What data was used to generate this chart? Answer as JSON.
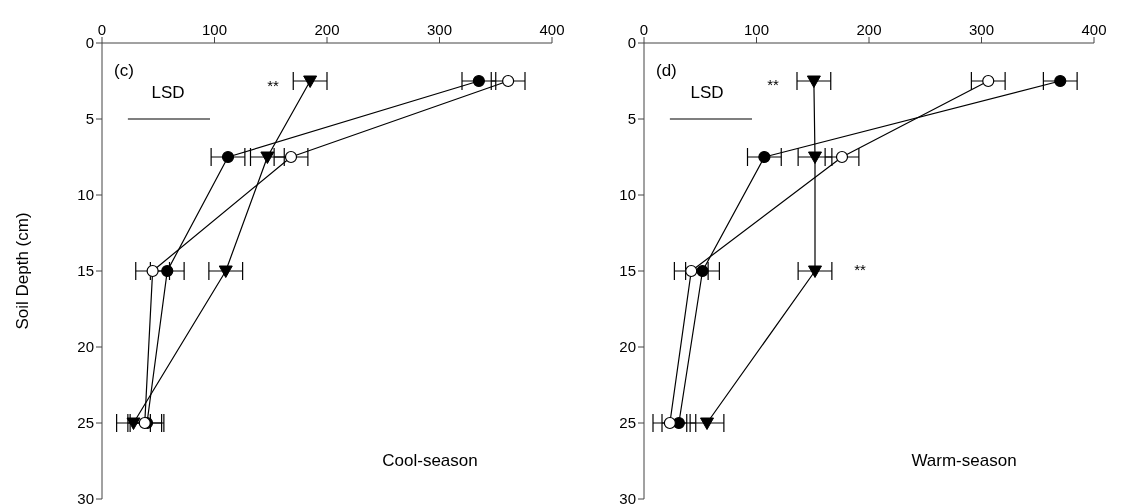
{
  "chart_data": [
    {
      "type": "line",
      "title": "(c)",
      "ylabel": "Soil Depth (cm)",
      "xlim": [
        0,
        400
      ],
      "xticks": [
        0,
        100,
        200,
        300,
        400
      ],
      "ylim": [
        30,
        0
      ],
      "yticks": [
        0,
        5,
        10,
        15,
        20,
        25,
        30
      ],
      "line_style": "solid",
      "series": [
        {
          "color": "#000000",
          "marker": "circle",
          "x": [
            335,
            112,
            58,
            40
          ],
          "values": [
            2.5,
            7.5,
            15,
            25
          ],
          "xerrors": [
            15,
            15,
            15,
            15
          ]
        },
        {
          "color": "#000000",
          "colors": [
            "#ffffff",
            "#ffffff",
            "#ffffff",
            "#ffffff"
          ],
          "marker": "circle",
          "x": [
            361,
            168,
            45,
            38
          ],
          "values": [
            2.5,
            7.5,
            15,
            25
          ],
          "xerrors": [
            15,
            15,
            15,
            15
          ]
        },
        {
          "color": "#000000",
          "marker": "triangle",
          "x": [
            185,
            147,
            110,
            28
          ],
          "values": [
            2.5,
            7.5,
            15,
            25
          ],
          "xerrors": [
            15,
            15,
            15,
            15
          ]
        },
        {
          "color": "#000000",
          "marker": "none",
          "x": [
            23,
            96
          ],
          "values": [
            5,
            5
          ]
        }
      ],
      "annotations": [
        "**",
        "LSD",
        "Cool-season"
      ]
    },
    {
      "type": "line",
      "title": "(d)",
      "xlim": [
        0,
        400
      ],
      "xticks": [
        0,
        100,
        200,
        300,
        400
      ],
      "ylim": [
        30,
        0
      ],
      "yticks": [
        0,
        5,
        10,
        15,
        20,
        25,
        30
      ],
      "line_style": "solid",
      "series": [
        {
          "color": "#000000",
          "marker": "circle",
          "x": [
            370,
            107,
            52,
            31
          ],
          "values": [
            2.5,
            7.5,
            15,
            25
          ],
          "xerrors": [
            15,
            15,
            15,
            15
          ]
        },
        {
          "color": "#000000",
          "colors": [
            "#ffffff",
            "#ffffff",
            "#ffffff",
            "#ffffff"
          ],
          "marker": "circle",
          "x": [
            306,
            176,
            42,
            23
          ],
          "values": [
            2.5,
            7.5,
            15,
            25
          ],
          "xerrors": [
            15,
            15,
            15,
            15
          ]
        },
        {
          "color": "#000000",
          "marker": "triangle",
          "x": [
            151,
            152,
            152,
            56
          ],
          "values": [
            2.5,
            7.5,
            15,
            25
          ],
          "xerrors": [
            15,
            15,
            15,
            15
          ]
        },
        {
          "color": "#000000",
          "marker": "none",
          "x": [
            23,
            96
          ],
          "values": [
            5,
            5
          ]
        }
      ],
      "annotations": [
        "**",
        "**",
        "LSD",
        "Warm-season"
      ]
    }
  ]
}
